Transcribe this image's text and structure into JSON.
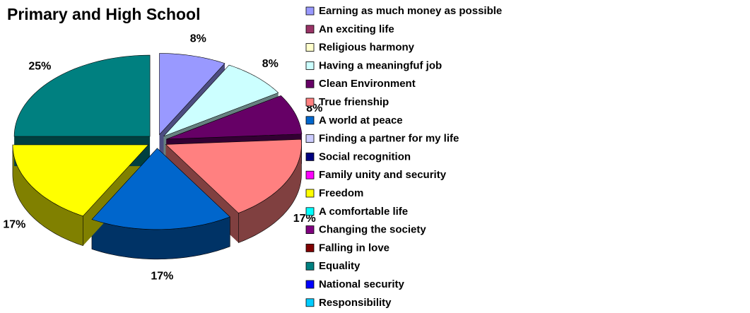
{
  "chart_data": {
    "type": "pie",
    "title": "Primary and High School",
    "categories": [
      "Earning as much money as possible",
      "An exciting life",
      "Religious harmony",
      "Having a meaningfuf job",
      "Clean Environment",
      "True frienship",
      "A world at peace",
      "Finding a partner for my life",
      "Social recognition",
      "Family unity and security",
      "Freedom",
      "A comfortable life",
      "Changing the society",
      "Falling in love",
      "Equality",
      "National security",
      "Responsibility"
    ],
    "values": [
      8,
      0,
      0,
      8,
      8,
      17,
      17,
      0,
      0,
      0,
      17,
      0,
      0,
      0,
      25,
      0,
      0
    ],
    "value_labels": [
      "8%",
      null,
      null,
      "8%",
      "8%",
      "17%",
      "17%",
      null,
      null,
      null,
      "17%",
      null,
      null,
      null,
      "25%",
      null,
      null
    ],
    "colors": [
      "#9999ff",
      "#993366",
      "#ffffcc",
      "#ccffff",
      "#660066",
      "#ff8080",
      "#0066cc",
      "#ccccff",
      "#000080",
      "#ff00ff",
      "#ffff00",
      "#00ffff",
      "#800080",
      "#800000",
      "#008080",
      "#0000ff",
      "#00ccff"
    ],
    "legend": "right"
  }
}
